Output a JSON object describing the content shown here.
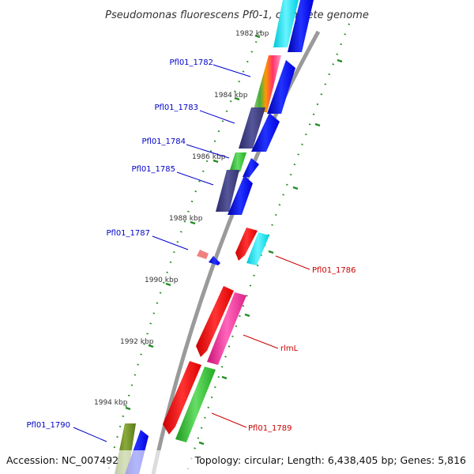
{
  "title": "Pseudomonas fluorescens Pf0-1, complete genome",
  "footer": {
    "accession": "Accession: NC_007492",
    "topology": "Topology: circular; Length: 6,438,405 bp; Genes: 5,816"
  },
  "ticks": [
    "1982 kbp",
    "1984 kbp",
    "1986 kbp",
    "1988 kbp",
    "1990 kbp",
    "1992 kbp",
    "1994 kbp"
  ],
  "genes": {
    "forward": [
      "Pfl01_1782",
      "Pfl01_1783",
      "Pfl01_1784",
      "Pfl01_1785",
      "Pfl01_1787",
      "Pfl01_1790"
    ],
    "reverse": [
      "Pfl01_1786",
      "rlmL",
      "Pfl01_1789"
    ]
  },
  "colors": {
    "forward_label": "#0000cc",
    "reverse_label": "#cc0000",
    "backbone": "#808080",
    "tick": "#228b22"
  }
}
